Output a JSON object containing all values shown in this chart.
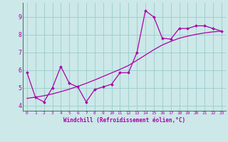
{
  "xlabel": "Windchill (Refroidissement éolien,°C)",
  "bg_color": "#cce8e8",
  "line_color": "#aa00aa",
  "grid_color": "#99cccc",
  "xlim": [
    -0.5,
    23.5
  ],
  "ylim": [
    3.7,
    9.8
  ],
  "xticks": [
    0,
    1,
    2,
    3,
    4,
    5,
    6,
    7,
    8,
    9,
    10,
    11,
    12,
    13,
    14,
    15,
    16,
    17,
    18,
    19,
    20,
    21,
    22,
    23
  ],
  "yticks": [
    4,
    5,
    6,
    7,
    8,
    9
  ],
  "jagged_x": [
    0,
    1,
    2,
    3,
    4,
    5,
    6,
    7,
    8,
    9,
    10,
    11,
    12,
    13,
    14,
    15,
    16,
    17,
    18,
    19,
    20,
    21,
    22,
    23
  ],
  "jagged_y": [
    5.85,
    4.45,
    4.2,
    5.0,
    6.2,
    5.25,
    5.05,
    4.2,
    4.9,
    5.05,
    5.2,
    5.85,
    5.85,
    7.0,
    9.35,
    9.0,
    7.8,
    7.75,
    8.35,
    8.35,
    8.5,
    8.5,
    8.35,
    8.2
  ],
  "smooth_x": [
    0,
    1,
    2,
    3,
    4,
    5,
    6,
    7,
    8,
    9,
    10,
    11,
    12,
    13,
    14,
    15,
    16,
    17,
    18,
    19,
    20,
    21,
    22,
    23
  ],
  "smooth_y": [
    4.4,
    4.47,
    4.55,
    4.65,
    4.78,
    4.92,
    5.08,
    5.25,
    5.44,
    5.64,
    5.84,
    6.04,
    6.26,
    6.55,
    6.85,
    7.15,
    7.42,
    7.62,
    7.8,
    7.92,
    8.02,
    8.1,
    8.16,
    8.2
  ]
}
